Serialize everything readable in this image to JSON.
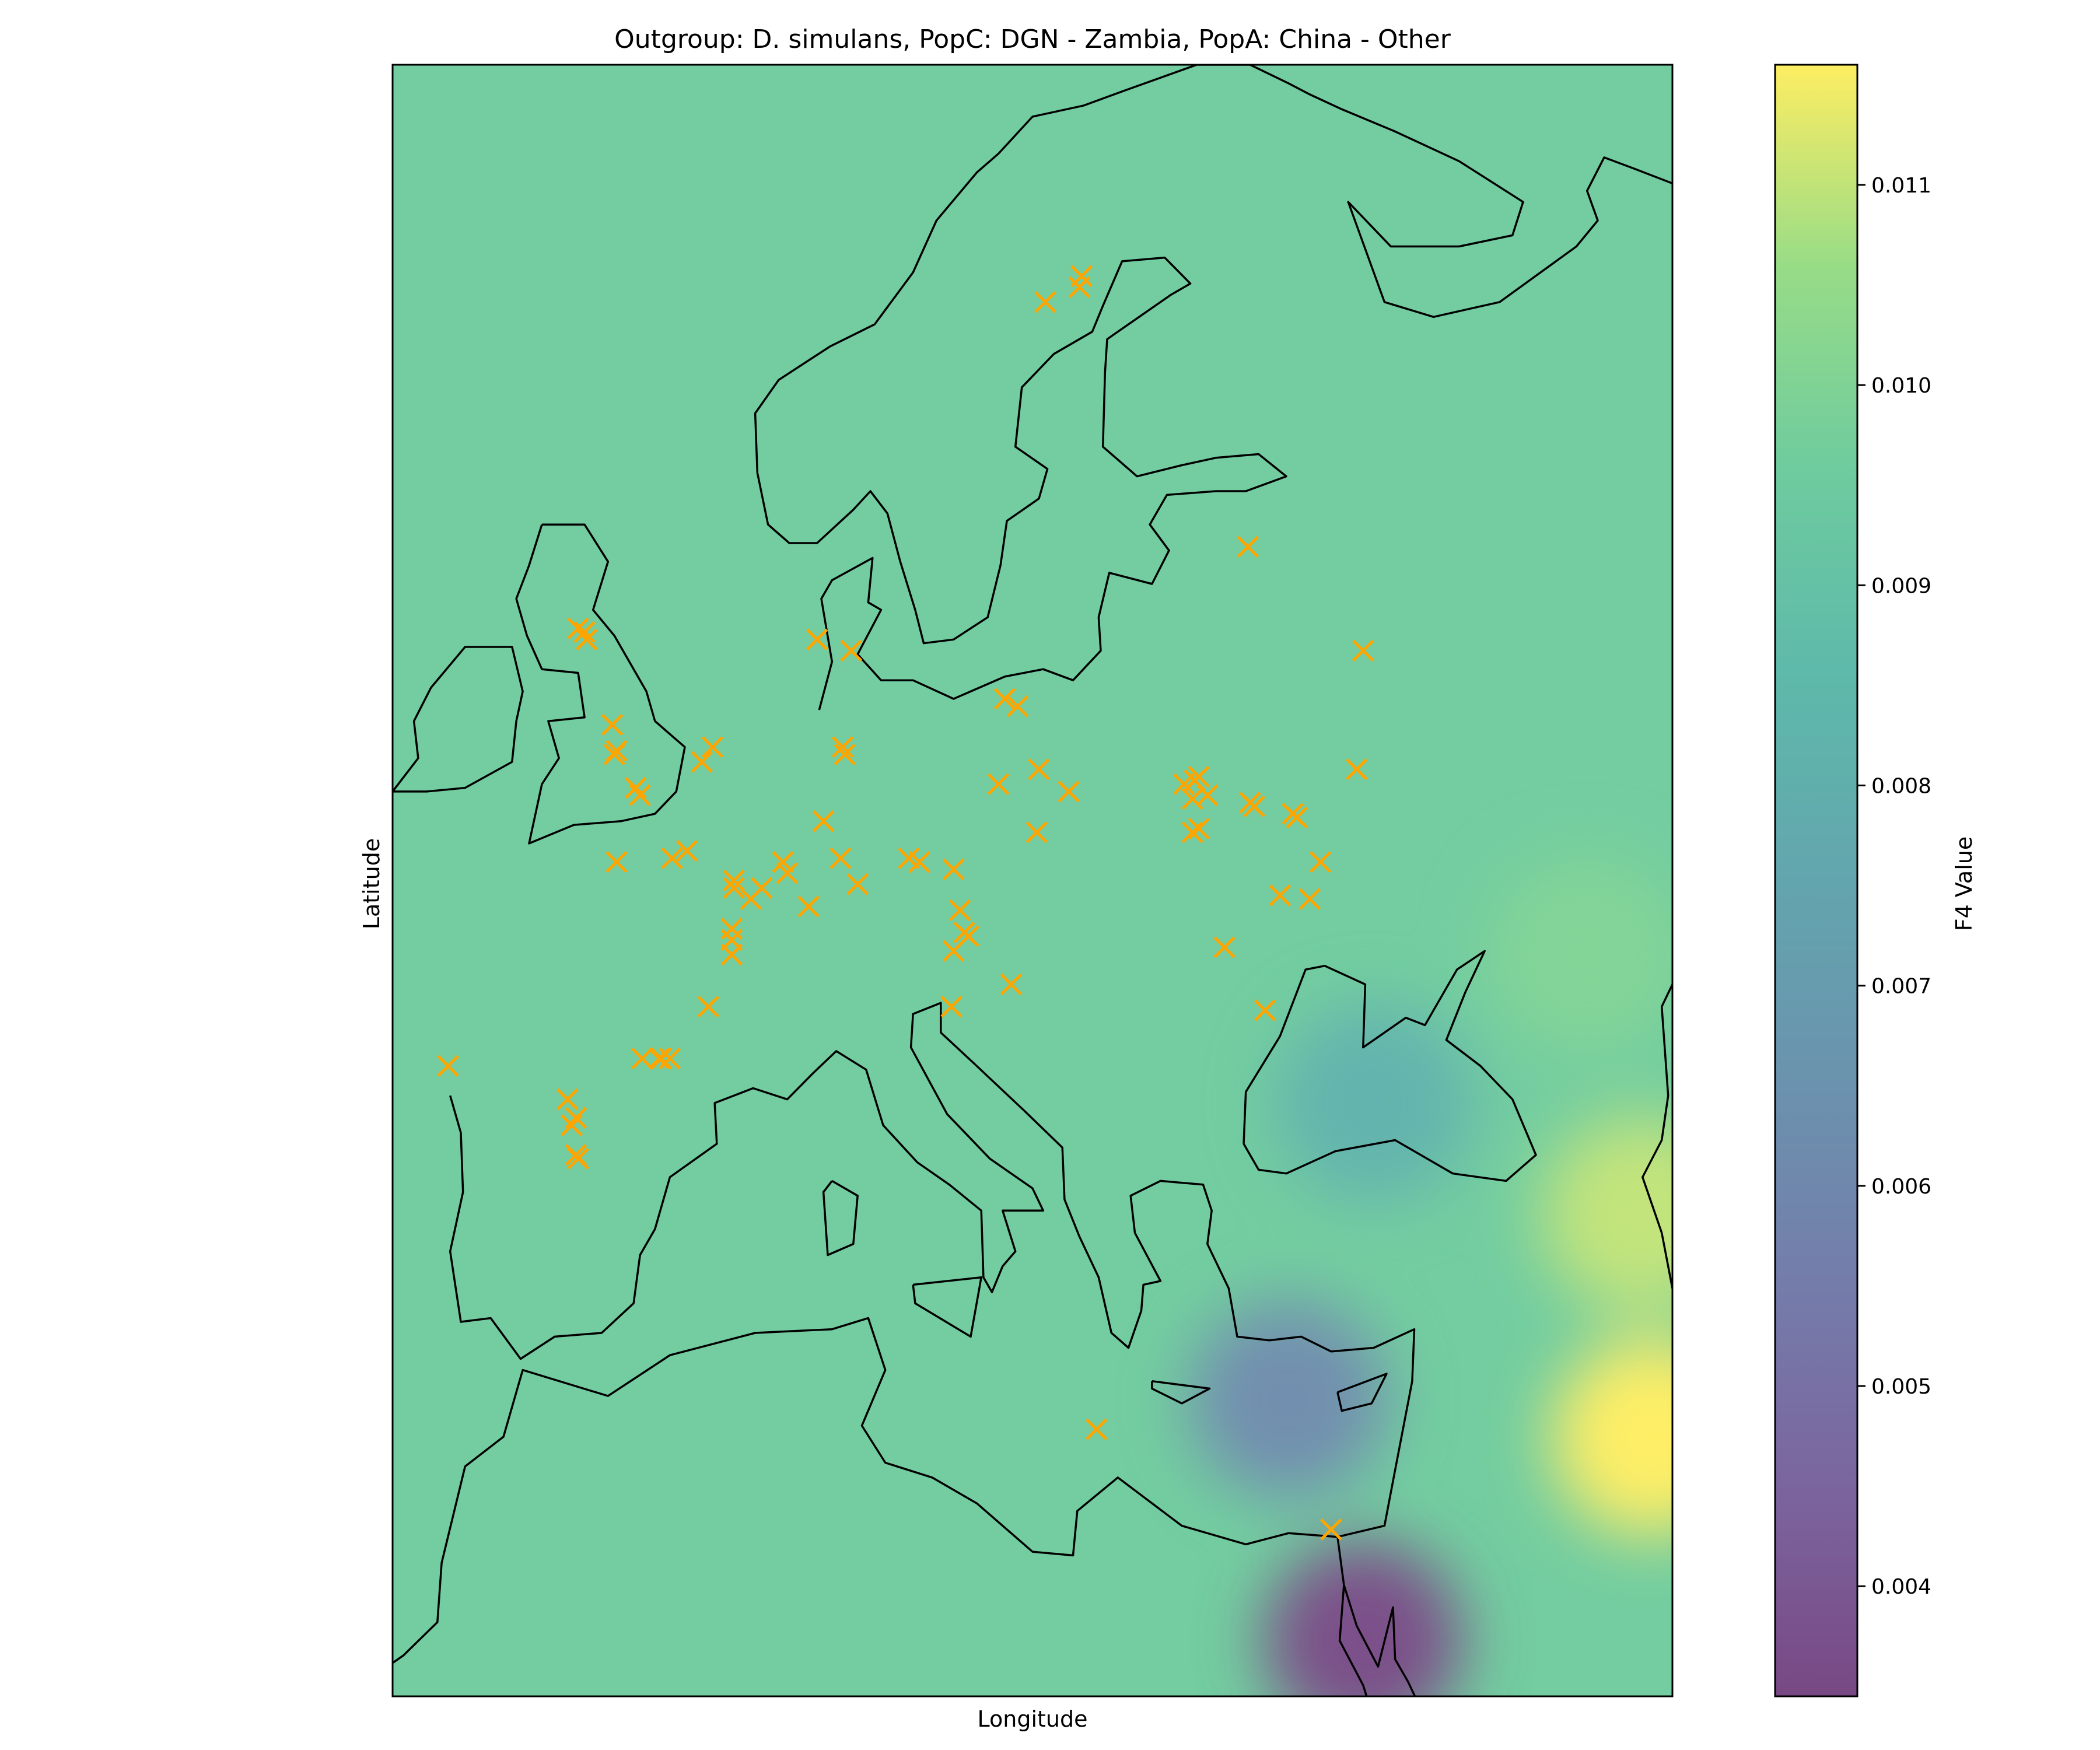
{
  "chart_data": {
    "type": "heatmap",
    "title": "Outgroup: D. simulans, PopC: DGN - Zambia, PopA: China - Other",
    "xlabel": "Longitude",
    "ylabel": "Latitude",
    "extent": {
      "lon": [
        -12,
        48
      ],
      "lat": [
        27,
        71
      ]
    },
    "background_value": 0.0096,
    "colorbar": {
      "label": "F4 Value",
      "range": [
        0.00345,
        0.0116
      ],
      "ticks": [
        "0.004",
        "0.005",
        "0.006",
        "0.007",
        "0.008",
        "0.009",
        "0.010",
        "0.011"
      ],
      "tick_values": [
        0.004,
        0.005,
        0.006,
        0.007,
        0.008,
        0.009,
        0.01,
        0.011
      ],
      "colormap": "viridis",
      "alpha": 0.7
    },
    "hotspots": [
      {
        "lon": 33.5,
        "lat": 28.5,
        "value": 0.0035
      },
      {
        "lon": 30,
        "lat": 35,
        "value": 0.0062
      },
      {
        "lon": 34,
        "lat": 43,
        "value": 0.0082
      },
      {
        "lon": 47,
        "lat": 34,
        "value": 0.0116
      },
      {
        "lon": 46.5,
        "lat": 40,
        "value": 0.011
      },
      {
        "lon": 44,
        "lat": 47,
        "value": 0.01
      }
    ],
    "sample_marker_color": "#ffa500",
    "samples": [
      [
        -3.3,
        55.8
      ],
      [
        -3.0,
        55.7
      ],
      [
        -2.9,
        55.5
      ],
      [
        -1.7,
        53.2
      ],
      [
        -1.5,
        52.5
      ],
      [
        -1.6,
        52.4
      ],
      [
        -0.6,
        51.5
      ],
      [
        -0.4,
        51.3
      ],
      [
        2.5,
        52.2
      ],
      [
        3.0,
        52.6
      ],
      [
        7.9,
        55.5
      ],
      [
        9.5,
        55.2
      ],
      [
        9.2,
        52.4
      ],
      [
        9.1,
        52.6
      ],
      [
        8.2,
        50.6
      ],
      [
        -1.5,
        49.5
      ],
      [
        1.1,
        49.6
      ],
      [
        1.8,
        49.8
      ],
      [
        4.0,
        49.0
      ],
      [
        4.0,
        48.8
      ],
      [
        4.8,
        48.5
      ],
      [
        5.3,
        48.8
      ],
      [
        6.3,
        49.5
      ],
      [
        6.5,
        49.2
      ],
      [
        3.9,
        47.7
      ],
      [
        3.9,
        47.4
      ],
      [
        3.9,
        47.0
      ],
      [
        7.5,
        48.3
      ],
      [
        9.0,
        49.6
      ],
      [
        9.8,
        48.9
      ],
      [
        12.2,
        49.6
      ],
      [
        12.7,
        49.5
      ],
      [
        14.3,
        49.3
      ],
      [
        14.6,
        48.2
      ],
      [
        14.3,
        47.1
      ],
      [
        14.8,
        47.6
      ],
      [
        15.0,
        47.5
      ],
      [
        14.2,
        45.6
      ],
      [
        17.0,
        46.2
      ],
      [
        2.8,
        45.6
      ],
      [
        1.0,
        44.2
      ],
      [
        -0.3,
        44.2
      ],
      [
        0.5,
        44.2
      ],
      [
        0.6,
        44.2
      ],
      [
        -9.4,
        44.0
      ],
      [
        -3.8,
        43.1
      ],
      [
        -3.4,
        42.6
      ],
      [
        -3.6,
        42.4
      ],
      [
        -3.3,
        41.5
      ],
      [
        -3.4,
        41.6
      ],
      [
        16.7,
        53.9
      ],
      [
        17.3,
        53.7
      ],
      [
        16.4,
        51.6
      ],
      [
        18.3,
        52.0
      ],
      [
        19.7,
        51.4
      ],
      [
        18.2,
        50.3
      ],
      [
        25.1,
        51.6
      ],
      [
        25.6,
        51.7
      ],
      [
        25.8,
        51.8
      ],
      [
        25.5,
        51.2
      ],
      [
        26.2,
        51.3
      ],
      [
        28.2,
        51.1
      ],
      [
        28.4,
        51.0
      ],
      [
        30.2,
        50.8
      ],
      [
        30.4,
        50.7
      ],
      [
        25.5,
        50.3
      ],
      [
        25.8,
        50.4
      ],
      [
        31.5,
        49.5
      ],
      [
        27.0,
        47.2
      ],
      [
        31.0,
        48.5
      ],
      [
        33.5,
        55.2
      ],
      [
        33.2,
        52.0
      ],
      [
        28.1,
        58.0
      ],
      [
        18.6,
        64.6
      ],
      [
        20.2,
        65.0
      ],
      [
        20.3,
        65.3
      ],
      [
        21.0,
        34.2
      ],
      [
        32.0,
        31.5
      ],
      [
        29.6,
        48.6
      ],
      [
        28.9,
        45.5
      ]
    ],
    "coastlines": [
      [
        [
          -12,
          51.4
        ],
        [
          -10.8,
          52.3
        ],
        [
          -11.0,
          53.3
        ],
        [
          -10.2,
          54.2
        ],
        [
          -8.6,
          55.3
        ],
        [
          -6.4,
          55.3
        ],
        [
          -5.9,
          54.1
        ],
        [
          -6.2,
          53.3
        ],
        [
          -6.4,
          52.2
        ],
        [
          -8.6,
          51.5
        ],
        [
          -10.4,
          51.4
        ],
        [
          -12,
          51.4
        ]
      ],
      [
        [
          -5.0,
          58.6
        ],
        [
          -3.0,
          58.6
        ],
        [
          -1.9,
          57.6
        ],
        [
          -2.6,
          56.3
        ],
        [
          -1.6,
          55.6
        ],
        [
          -0.1,
          54.1
        ],
        [
          0.3,
          53.3
        ],
        [
          1.7,
          52.6
        ],
        [
          1.3,
          51.4
        ],
        [
          0.3,
          50.8
        ],
        [
          -1.3,
          50.6
        ],
        [
          -3.5,
          50.5
        ],
        [
          -5.6,
          50.0
        ],
        [
          -5.0,
          51.6
        ],
        [
          -4.2,
          52.3
        ],
        [
          -4.7,
          53.3
        ],
        [
          -3.0,
          53.4
        ],
        [
          -3.3,
          54.6
        ],
        [
          -5.0,
          54.7
        ],
        [
          -5.7,
          55.6
        ],
        [
          -6.2,
          56.6
        ],
        [
          -5.6,
          57.5
        ],
        [
          -5.0,
          58.6
        ]
      ],
      [
        [
          -9.3,
          43.2
        ],
        [
          -8.8,
          42.2
        ],
        [
          -8.7,
          40.6
        ],
        [
          -9.3,
          39.0
        ],
        [
          -8.8,
          37.1
        ],
        [
          -7.4,
          37.2
        ],
        [
          -6.0,
          36.1
        ],
        [
          -4.4,
          36.7
        ],
        [
          -2.2,
          36.8
        ],
        [
          -0.7,
          37.6
        ],
        [
          -0.4,
          38.9
        ],
        [
          0.3,
          39.6
        ],
        [
          1.0,
          41.0
        ],
        [
          3.2,
          41.9
        ],
        [
          3.1,
          43.0
        ],
        [
          4.9,
          43.4
        ],
        [
          6.5,
          43.1
        ],
        [
          7.7,
          43.8
        ],
        [
          8.8,
          44.4
        ],
        [
          10.2,
          43.9
        ],
        [
          11.0,
          42.4
        ],
        [
          12.6,
          41.4
        ],
        [
          14.1,
          40.8
        ],
        [
          15.6,
          40.1
        ],
        [
          15.7,
          38.3
        ],
        [
          16.1,
          37.9
        ],
        [
          16.6,
          38.6
        ],
        [
          17.2,
          39.0
        ],
        [
          16.6,
          40.1
        ],
        [
          18.5,
          40.1
        ],
        [
          18.0,
          40.7
        ],
        [
          16.0,
          41.5
        ],
        [
          14.0,
          42.7
        ],
        [
          12.3,
          44.5
        ],
        [
          12.4,
          45.4
        ],
        [
          13.7,
          45.7
        ],
        [
          13.7,
          44.9
        ],
        [
          15.2,
          44.1
        ],
        [
          17.6,
          42.8
        ],
        [
          19.4,
          41.8
        ],
        [
          19.5,
          40.4
        ],
        [
          20.2,
          39.4
        ],
        [
          21.1,
          38.3
        ],
        [
          21.7,
          36.8
        ],
        [
          22.5,
          36.4
        ],
        [
          23.1,
          37.4
        ],
        [
          23.2,
          38.1
        ],
        [
          24.0,
          38.2
        ],
        [
          22.8,
          39.5
        ],
        [
          22.6,
          40.5
        ],
        [
          24.0,
          40.9
        ],
        [
          26.0,
          40.8
        ],
        [
          26.4,
          40.1
        ],
        [
          26.2,
          39.2
        ],
        [
          27.2,
          38.0
        ],
        [
          27.6,
          36.7
        ],
        [
          29.1,
          36.6
        ],
        [
          30.6,
          36.7
        ],
        [
          32.0,
          36.3
        ],
        [
          34.0,
          36.4
        ],
        [
          35.9,
          36.9
        ],
        [
          35.8,
          35.5
        ],
        [
          35.0,
          33.1
        ],
        [
          34.5,
          31.6
        ],
        [
          32.3,
          31.3
        ],
        [
          30.0,
          31.4
        ],
        [
          28.0,
          31.1
        ],
        [
          25.0,
          31.6
        ],
        [
          22.0,
          32.9
        ],
        [
          20.1,
          32.0
        ],
        [
          19.9,
          30.8
        ],
        [
          18.0,
          30.9
        ],
        [
          15.4,
          32.2
        ],
        [
          13.3,
          32.9
        ],
        [
          11.1,
          33.3
        ],
        [
          10.0,
          34.3
        ],
        [
          11.1,
          35.8
        ],
        [
          10.3,
          37.2
        ],
        [
          8.6,
          36.9
        ],
        [
          5.0,
          36.8
        ],
        [
          1.0,
          36.2
        ],
        [
          -1.9,
          35.1
        ],
        [
          -5.9,
          35.8
        ],
        [
          -6.8,
          34.0
        ],
        [
          -8.6,
          33.2
        ],
        [
          -9.7,
          30.6
        ],
        [
          -9.9,
          29.0
        ],
        [
          -11.5,
          28.1
        ],
        [
          -12,
          27.9
        ]
      ],
      [
        [
          8.6,
          40.9
        ],
        [
          9.8,
          40.5
        ],
        [
          9.6,
          39.2
        ],
        [
          8.4,
          38.9
        ],
        [
          8.2,
          40.6
        ],
        [
          8.6,
          40.9
        ]
      ],
      [
        [
          12.4,
          38.1
        ],
        [
          15.6,
          38.3
        ],
        [
          15.1,
          36.7
        ],
        [
          12.5,
          37.6
        ],
        [
          12.4,
          38.1
        ]
      ],
      [
        [
          23.6,
          35.5
        ],
        [
          26.3,
          35.3
        ],
        [
          25.0,
          34.9
        ],
        [
          23.6,
          35.3
        ],
        [
          23.6,
          35.5
        ]
      ],
      [
        [
          32.3,
          35.2
        ],
        [
          34.6,
          35.7
        ],
        [
          33.9,
          34.9
        ],
        [
          32.5,
          34.7
        ],
        [
          32.3,
          35.2
        ]
      ],
      [
        [
          8.0,
          53.6
        ],
        [
          8.6,
          54.9
        ],
        [
          8.1,
          56.6
        ],
        [
          8.6,
          57.1
        ],
        [
          10.5,
          57.7
        ],
        [
          10.3,
          56.5
        ],
        [
          10.9,
          56.3
        ],
        [
          9.8,
          55.1
        ],
        [
          10.9,
          54.4
        ],
        [
          12.4,
          54.4
        ],
        [
          14.3,
          53.9
        ],
        [
          16.7,
          54.5
        ],
        [
          18.5,
          54.7
        ],
        [
          19.9,
          54.4
        ],
        [
          21.2,
          55.2
        ],
        [
          21.1,
          56.1
        ],
        [
          21.6,
          57.3
        ],
        [
          23.6,
          57.0
        ],
        [
          24.4,
          57.9
        ],
        [
          23.5,
          58.6
        ],
        [
          24.3,
          59.4
        ],
        [
          26.6,
          59.5
        ],
        [
          28.0,
          59.5
        ],
        [
          29.9,
          59.9
        ],
        [
          28.6,
          60.5
        ],
        [
          26.6,
          60.4
        ],
        [
          25.0,
          60.2
        ],
        [
          22.9,
          59.9
        ],
        [
          21.3,
          60.7
        ],
        [
          21.4,
          62.7
        ],
        [
          21.5,
          63.6
        ],
        [
          24.5,
          64.8
        ],
        [
          25.4,
          65.1
        ],
        [
          24.2,
          65.8
        ],
        [
          22.2,
          65.7
        ],
        [
          21.3,
          64.5
        ],
        [
          20.8,
          63.8
        ],
        [
          19.0,
          63.2
        ],
        [
          17.5,
          62.3
        ],
        [
          17.2,
          60.7
        ],
        [
          18.7,
          60.1
        ],
        [
          18.3,
          59.3
        ],
        [
          16.8,
          58.7
        ],
        [
          16.5,
          57.5
        ],
        [
          15.9,
          56.1
        ],
        [
          14.3,
          55.5
        ],
        [
          12.9,
          55.4
        ],
        [
          12.5,
          56.3
        ],
        [
          11.8,
          57.6
        ],
        [
          11.2,
          58.9
        ],
        [
          10.4,
          59.5
        ],
        [
          9.6,
          59.0
        ],
        [
          7.9,
          58.1
        ],
        [
          6.6,
          58.1
        ],
        [
          5.6,
          58.6
        ],
        [
          5.1,
          60.0
        ],
        [
          5.0,
          61.6
        ],
        [
          6.1,
          62.5
        ],
        [
          8.5,
          63.4
        ],
        [
          10.6,
          64.0
        ],
        [
          12.4,
          65.4
        ],
        [
          13.5,
          66.8
        ],
        [
          15.4,
          68.1
        ],
        [
          16.4,
          68.6
        ],
        [
          18.0,
          69.6
        ],
        [
          20.4,
          69.9
        ],
        [
          22.3,
          70.3
        ],
        [
          25.7,
          71.0
        ],
        [
          28.2,
          71.0
        ],
        [
          30.0,
          70.5
        ],
        [
          31.0,
          70.2
        ],
        [
          32.5,
          69.8
        ],
        [
          35.0,
          69.2
        ],
        [
          38.0,
          68.4
        ],
        [
          41.0,
          67.3
        ],
        [
          40.5,
          66.4
        ],
        [
          38.0,
          66.1
        ],
        [
          34.8,
          66.1
        ],
        [
          32.8,
          67.3
        ],
        [
          34.5,
          64.6
        ],
        [
          36.8,
          64.2
        ],
        [
          39.9,
          64.6
        ],
        [
          43.5,
          66.1
        ],
        [
          44.5,
          66.8
        ],
        [
          44.0,
          67.6
        ],
        [
          44.8,
          68.5
        ],
        [
          46.2,
          68.2
        ],
        [
          48,
          67.8
        ]
      ],
      [
        [
          27.9,
          41.9
        ],
        [
          28.0,
          43.3
        ],
        [
          29.6,
          44.8
        ],
        [
          30.8,
          46.6
        ],
        [
          31.7,
          46.7
        ],
        [
          33.6,
          46.2
        ],
        [
          33.5,
          44.5
        ],
        [
          35.5,
          45.3
        ],
        [
          36.4,
          45.1
        ],
        [
          37.9,
          46.6
        ],
        [
          39.2,
          47.1
        ],
        [
          38.3,
          46.0
        ],
        [
          37.4,
          44.7
        ],
        [
          39.0,
          44.0
        ],
        [
          40.5,
          43.1
        ],
        [
          41.6,
          41.6
        ],
        [
          40.2,
          40.9
        ],
        [
          37.7,
          41.1
        ],
        [
          35.0,
          42.0
        ],
        [
          32.2,
          41.7
        ],
        [
          29.9,
          41.1
        ],
        [
          28.6,
          41.2
        ],
        [
          27.9,
          41.9
        ]
      ],
      [
        [
          48,
          38.0
        ],
        [
          47.5,
          39.5
        ],
        [
          46.6,
          41.0
        ],
        [
          47.5,
          42.0
        ],
        [
          47.8,
          43.2
        ],
        [
          47.5,
          45.6
        ],
        [
          48,
          46.2
        ]
      ],
      [
        [
          32.3,
          31.3
        ],
        [
          32.6,
          30.0
        ],
        [
          33.2,
          28.9
        ],
        [
          34.2,
          27.8
        ],
        [
          34.9,
          29.4
        ],
        [
          35.0,
          28.0
        ],
        [
          35.6,
          27.4
        ],
        [
          36.5,
          26.3
        ],
        [
          37.3,
          25.0
        ]
      ],
      [
        [
          32.6,
          30.0
        ],
        [
          32.4,
          28.5
        ],
        [
          33.5,
          27.3
        ],
        [
          34.2,
          26.0
        ]
      ],
      [
        [
          -12,
          65.3
        ],
        [
          -13.5,
          66.1
        ],
        [
          -15.0,
          64.3
        ],
        [
          -18.0,
          63.4
        ],
        [
          -21.0,
          63.6
        ],
        [
          -12,
          65.3
        ]
      ]
    ]
  }
}
